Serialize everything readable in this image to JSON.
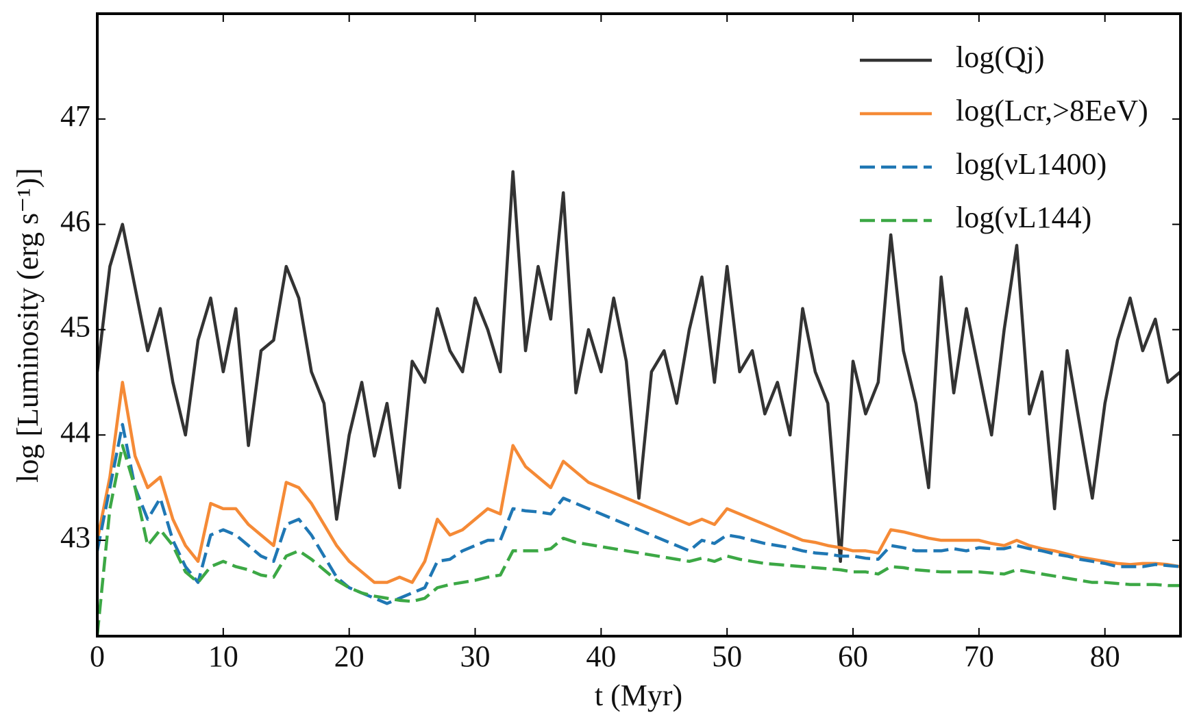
{
  "chart_data": {
    "type": "line",
    "xlabel": "t (Myr)",
    "ylabel": "log [Luminosity (erg s⁻¹)]",
    "x": [
      0,
      1,
      2,
      3,
      4,
      5,
      6,
      7,
      8,
      9,
      10,
      11,
      12,
      13,
      14,
      15,
      16,
      17,
      18,
      19,
      20,
      21,
      22,
      23,
      24,
      25,
      26,
      27,
      28,
      29,
      30,
      31,
      32,
      33,
      34,
      35,
      36,
      37,
      38,
      39,
      40,
      41,
      42,
      43,
      44,
      45,
      46,
      47,
      48,
      49,
      50,
      51,
      52,
      53,
      54,
      55,
      56,
      57,
      58,
      59,
      60,
      61,
      62,
      63,
      64,
      65,
      66,
      67,
      68,
      69,
      70,
      71,
      72,
      73,
      74,
      75,
      76,
      77,
      78,
      79,
      80,
      81,
      82,
      83,
      84,
      85,
      86
    ],
    "series": [
      {
        "name": "log(Qj)",
        "color": "#333333",
        "linestyle": "solid",
        "values": [
          44.6,
          45.6,
          46.0,
          45.4,
          44.8,
          45.2,
          44.5,
          44.0,
          44.9,
          45.3,
          44.6,
          45.2,
          43.9,
          44.8,
          44.9,
          45.6,
          45.3,
          44.6,
          44.3,
          43.2,
          44.0,
          44.5,
          43.8,
          44.3,
          43.5,
          44.7,
          44.5,
          45.2,
          44.8,
          44.6,
          45.3,
          45.0,
          44.6,
          46.5,
          44.8,
          45.6,
          45.1,
          46.3,
          44.4,
          45.0,
          44.6,
          45.3,
          44.7,
          43.4,
          44.6,
          44.8,
          44.3,
          45.0,
          45.5,
          44.5,
          45.6,
          44.6,
          44.8,
          44.2,
          44.5,
          44.0,
          45.2,
          44.6,
          44.3,
          42.8,
          44.7,
          44.2,
          44.5,
          45.9,
          44.8,
          44.3,
          43.5,
          45.5,
          44.4,
          45.2,
          44.6,
          44.0,
          45.0,
          45.8,
          44.2,
          44.6,
          43.3,
          44.8,
          44.1,
          43.4,
          44.3,
          44.9,
          45.3,
          44.8,
          45.1,
          44.5,
          44.6
        ]
      },
      {
        "name": "log(Lcr,>8EeV)",
        "color": "#f58a36",
        "linestyle": "solid",
        "values": [
          43.0,
          43.6,
          44.5,
          43.8,
          43.5,
          43.6,
          43.2,
          42.95,
          42.8,
          43.35,
          43.3,
          43.3,
          43.15,
          43.05,
          42.95,
          43.55,
          43.5,
          43.35,
          43.15,
          42.95,
          42.8,
          42.7,
          42.6,
          42.6,
          42.65,
          42.6,
          42.8,
          43.2,
          43.05,
          43.1,
          43.2,
          43.3,
          43.25,
          43.9,
          43.7,
          43.6,
          43.5,
          43.75,
          43.65,
          43.55,
          43.5,
          43.45,
          43.4,
          43.35,
          43.3,
          43.25,
          43.2,
          43.15,
          43.2,
          43.15,
          43.3,
          43.25,
          43.2,
          43.15,
          43.1,
          43.05,
          43.0,
          42.98,
          42.95,
          42.93,
          42.9,
          42.9,
          42.88,
          43.1,
          43.08,
          43.05,
          43.02,
          43.0,
          43.0,
          43.0,
          43.0,
          42.97,
          42.95,
          43.0,
          42.95,
          42.92,
          42.9,
          42.87,
          42.84,
          42.82,
          42.8,
          42.78,
          42.77,
          42.78,
          42.78,
          42.77,
          42.75
        ]
      },
      {
        "name": "log(νL1400)",
        "color": "#1f77b4",
        "linestyle": "dashed",
        "values": [
          42.9,
          43.5,
          44.1,
          43.5,
          43.2,
          43.4,
          43.0,
          42.75,
          42.6,
          43.05,
          43.1,
          43.05,
          42.95,
          42.85,
          42.8,
          43.15,
          43.2,
          43.05,
          42.85,
          42.65,
          42.55,
          42.5,
          42.45,
          42.4,
          42.45,
          42.5,
          42.55,
          42.8,
          42.82,
          42.9,
          42.95,
          43.0,
          43.0,
          43.3,
          43.28,
          43.27,
          43.25,
          43.4,
          43.35,
          43.3,
          43.25,
          43.2,
          43.15,
          43.1,
          43.05,
          43.0,
          42.95,
          42.9,
          43.0,
          42.97,
          43.05,
          43.03,
          43.0,
          42.97,
          42.95,
          42.93,
          42.9,
          42.88,
          42.87,
          42.85,
          42.85,
          42.83,
          42.82,
          42.95,
          42.93,
          42.9,
          42.9,
          42.9,
          42.92,
          42.9,
          42.93,
          42.92,
          42.92,
          42.95,
          42.92,
          42.9,
          42.87,
          42.85,
          42.82,
          42.8,
          42.78,
          42.75,
          42.75,
          42.75,
          42.77,
          42.76,
          42.75
        ]
      },
      {
        "name": "log(νL144)",
        "color": "#3ca845",
        "linestyle": "dashed",
        "values": [
          42.1,
          43.3,
          43.9,
          43.5,
          42.95,
          43.1,
          42.95,
          42.7,
          42.6,
          42.75,
          42.8,
          42.75,
          42.72,
          42.67,
          42.65,
          42.85,
          42.9,
          42.82,
          42.72,
          42.62,
          42.55,
          42.5,
          42.47,
          42.45,
          42.43,
          42.42,
          42.45,
          42.55,
          42.58,
          42.6,
          42.62,
          42.65,
          42.67,
          42.9,
          42.9,
          42.9,
          42.92,
          43.02,
          42.98,
          42.96,
          42.94,
          42.92,
          42.9,
          42.88,
          42.86,
          42.84,
          42.82,
          42.8,
          42.83,
          42.8,
          42.85,
          42.82,
          42.8,
          42.78,
          42.77,
          42.76,
          42.75,
          42.74,
          42.73,
          42.72,
          42.7,
          42.7,
          42.68,
          42.75,
          42.74,
          42.72,
          42.71,
          42.7,
          42.7,
          42.7,
          42.7,
          42.69,
          42.68,
          42.72,
          42.7,
          42.68,
          42.66,
          42.64,
          42.62,
          42.6,
          42.6,
          42.59,
          42.58,
          42.58,
          42.58,
          42.57,
          42.57
        ]
      }
    ],
    "xlim": [
      0,
      86
    ],
    "xticks": [
      0,
      10,
      20,
      30,
      40,
      50,
      60,
      70,
      80
    ],
    "ylim": [
      42.09,
      48
    ],
    "yticks": [
      43,
      44,
      45,
      46,
      47
    ],
    "grid": false,
    "legend": "upper right"
  }
}
